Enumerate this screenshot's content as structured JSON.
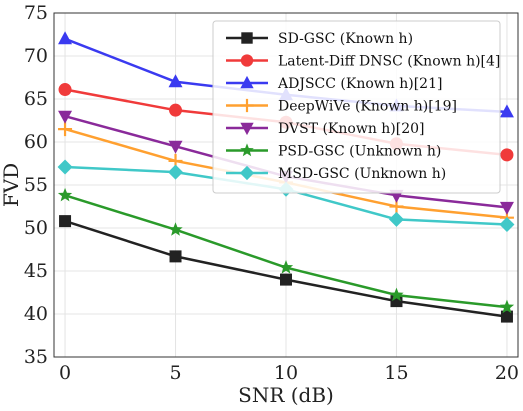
{
  "chart_data": {
    "type": "line",
    "title": "",
    "xlabel": "SNR (dB)",
    "ylabel": "FVD",
    "x": [
      0,
      5,
      10,
      15,
      20
    ],
    "xlim": [
      -0.5,
      20.5
    ],
    "ylim": [
      35,
      75
    ],
    "xticks": [
      0,
      5,
      10,
      15,
      20
    ],
    "yticks": [
      35,
      40,
      45,
      50,
      55,
      60,
      65,
      70,
      75
    ],
    "grid": true,
    "legend_position": "top-right",
    "series": [
      {
        "name": "SD-GSC (Known h)",
        "color": "#222222",
        "marker": "square",
        "values": [
          50.8,
          46.7,
          44.0,
          41.5,
          39.7
        ]
      },
      {
        "name": "Latent-Diff DNSC (Known h)[4]",
        "color": "#f03a3a",
        "marker": "circle",
        "values": [
          66.1,
          63.7,
          62.3,
          59.8,
          58.5
        ]
      },
      {
        "name": "ADJSCC (Known h)[21]",
        "color": "#3a3af0",
        "marker": "triangle-up",
        "values": [
          72.0,
          67.0,
          65.5,
          64.2,
          63.5
        ]
      },
      {
        "name": "DeepWiVe (Known h)[19]",
        "color": "#ffa030",
        "marker": "plus",
        "values": [
          61.5,
          57.8,
          55.3,
          52.5,
          51.2
        ]
      },
      {
        "name": "DVST (Known h)[20]",
        "color": "#8a2a9a",
        "marker": "triangle-down",
        "values": [
          63.0,
          59.5,
          56.0,
          53.8,
          52.4
        ]
      },
      {
        "name": "PSD-GSC (Unknown h)",
        "color": "#2a9a2a",
        "marker": "star",
        "values": [
          53.8,
          49.8,
          45.4,
          42.2,
          40.8
        ]
      },
      {
        "name": "MSD-GSC (Unknown h)",
        "color": "#40c8c8",
        "marker": "diamond",
        "values": [
          57.1,
          56.5,
          54.5,
          51.0,
          50.4
        ]
      }
    ]
  }
}
